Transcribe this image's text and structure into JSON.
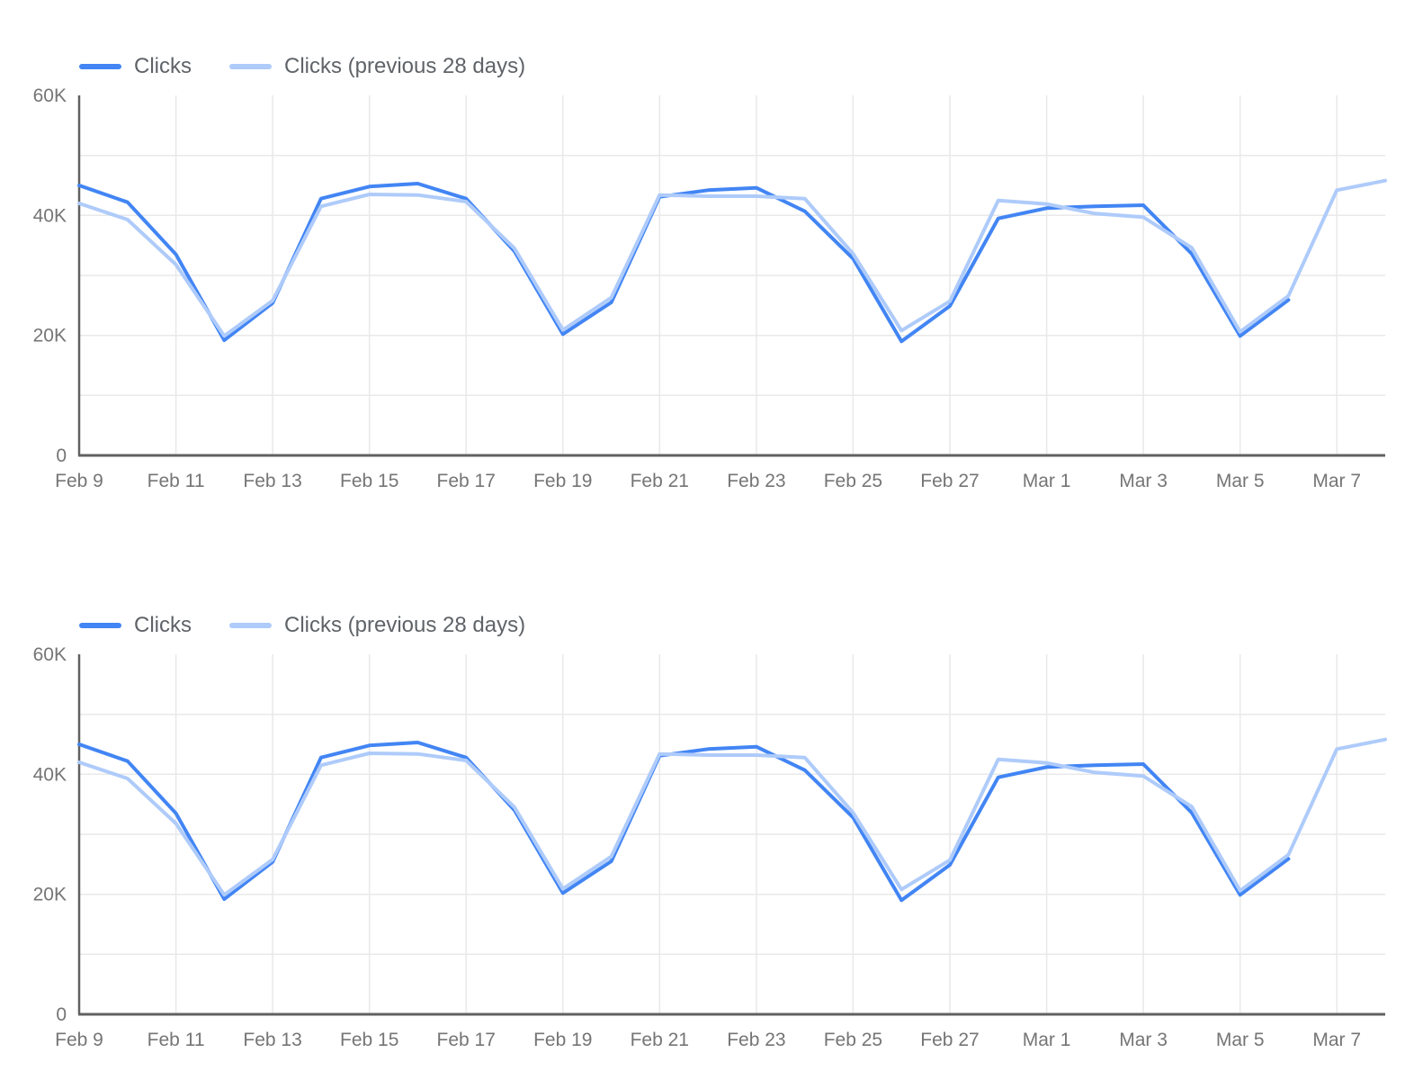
{
  "page": {
    "background": "#ffffff",
    "text_color_legend": "#5f6368",
    "text_color_ticks": "#757575",
    "grid_color": "#e9e9e9",
    "axis_color": "#616161"
  },
  "chart_data": [
    {
      "type": "line",
      "title": "",
      "grid": "on",
      "legend_position": "top-left",
      "legend": [
        {
          "label": "Clicks",
          "color": "#4285f4"
        },
        {
          "label": "Clicks (previous 28 days)",
          "color": "#aecbfa"
        }
      ],
      "x": [
        "Feb 9",
        "Feb 10",
        "Feb 11",
        "Feb 12",
        "Feb 13",
        "Feb 14",
        "Feb 15",
        "Feb 16",
        "Feb 17",
        "Feb 18",
        "Feb 19",
        "Feb 20",
        "Feb 21",
        "Feb 22",
        "Feb 23",
        "Feb 24",
        "Feb 25",
        "Feb 26",
        "Feb 27",
        "Feb 28",
        "Mar 1",
        "Mar 2",
        "Mar 3",
        "Mar 4",
        "Mar 5",
        "Mar 6",
        "Mar 7",
        "Mar 8"
      ],
      "x_tick_labels": [
        "Feb 9",
        "Feb 11",
        "Feb 13",
        "Feb 15",
        "Feb 17",
        "Feb 19",
        "Feb 21",
        "Feb 23",
        "Feb 25",
        "Feb 27",
        "Mar 1",
        "Mar 3",
        "Mar 5",
        "Mar 7"
      ],
      "x_tick_every": 2,
      "ylim": [
        0,
        60000
      ],
      "y_ticks": [
        {
          "label": "60K",
          "value": 60000
        },
        {
          "label": "40K",
          "value": 40000
        },
        {
          "label": "20K",
          "value": 20000
        },
        {
          "label": "0",
          "value": 0
        }
      ],
      "y_grid_step": 10000,
      "series": [
        {
          "name": "Clicks",
          "color": "#4285f4",
          "values": [
            45000,
            42200,
            33500,
            19200,
            25400,
            42800,
            44800,
            45300,
            42800,
            34000,
            20200,
            25500,
            43100,
            44200,
            44600,
            40700,
            32800,
            19000,
            24900,
            39500,
            41200,
            41500,
            41700,
            33600,
            19900,
            25900,
            null,
            null
          ]
        },
        {
          "name": "Clicks (previous 28 days)",
          "color": "#aecbfa",
          "values": [
            42000,
            39300,
            31800,
            19900,
            25800,
            41500,
            43500,
            43400,
            42300,
            34500,
            20900,
            26300,
            43400,
            43200,
            43200,
            42800,
            33600,
            20800,
            25700,
            42500,
            41900,
            40300,
            39700,
            34600,
            20600,
            26600,
            44200,
            45800
          ]
        }
      ]
    },
    {
      "type": "line",
      "title": "",
      "grid": "on",
      "legend_position": "top-left",
      "legend": [
        {
          "label": "Clicks",
          "color": "#4285f4"
        },
        {
          "label": "Clicks (previous 28 days)",
          "color": "#aecbfa"
        }
      ],
      "x": [
        "Feb 9",
        "Feb 10",
        "Feb 11",
        "Feb 12",
        "Feb 13",
        "Feb 14",
        "Feb 15",
        "Feb 16",
        "Feb 17",
        "Feb 18",
        "Feb 19",
        "Feb 20",
        "Feb 21",
        "Feb 22",
        "Feb 23",
        "Feb 24",
        "Feb 25",
        "Feb 26",
        "Feb 27",
        "Feb 28",
        "Mar 1",
        "Mar 2",
        "Mar 3",
        "Mar 4",
        "Mar 5",
        "Mar 6",
        "Mar 7",
        "Mar 8"
      ],
      "x_tick_labels": [
        "Feb 9",
        "Feb 11",
        "Feb 13",
        "Feb 15",
        "Feb 17",
        "Feb 19",
        "Feb 21",
        "Feb 23",
        "Feb 25",
        "Feb 27",
        "Mar 1",
        "Mar 3",
        "Mar 5",
        "Mar 7"
      ],
      "x_tick_every": 2,
      "ylim": [
        0,
        60000
      ],
      "y_ticks": [
        {
          "label": "60K",
          "value": 60000
        },
        {
          "label": "40K",
          "value": 40000
        },
        {
          "label": "20K",
          "value": 20000
        },
        {
          "label": "0",
          "value": 0
        }
      ],
      "y_grid_step": 10000,
      "series": [
        {
          "name": "Clicks",
          "color": "#4285f4",
          "values": [
            45000,
            42200,
            33500,
            19200,
            25400,
            42800,
            44800,
            45300,
            42800,
            34000,
            20200,
            25500,
            43100,
            44200,
            44600,
            40700,
            32800,
            19000,
            24900,
            39500,
            41200,
            41500,
            41700,
            33600,
            19900,
            25900,
            null,
            null
          ]
        },
        {
          "name": "Clicks (previous 28 days)",
          "color": "#aecbfa",
          "values": [
            42000,
            39300,
            31800,
            19900,
            25800,
            41500,
            43500,
            43400,
            42300,
            34500,
            20900,
            26300,
            43400,
            43200,
            43200,
            42800,
            33600,
            20800,
            25700,
            42500,
            41900,
            40300,
            39700,
            34600,
            20600,
            26600,
            44200,
            45800
          ]
        }
      ]
    }
  ]
}
